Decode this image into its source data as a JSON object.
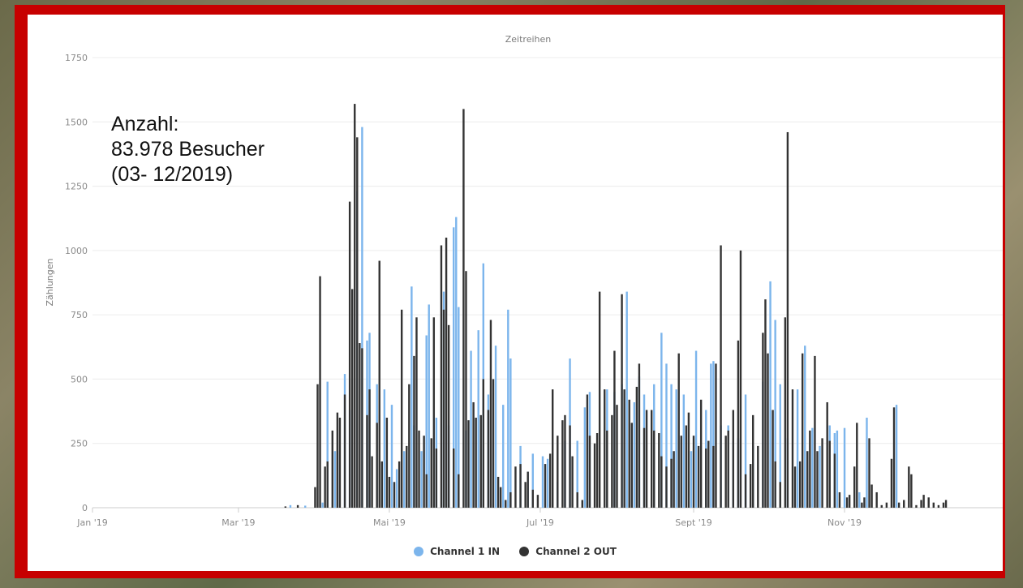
{
  "chart_data": {
    "type": "bar",
    "title": "Zeitreihen",
    "ylabel": "Zählungen",
    "xlabel": "",
    "ylim": [
      0,
      1750
    ],
    "yticks": [
      0,
      250,
      500,
      750,
      1000,
      1250,
      1500,
      1750
    ],
    "xlim": [
      "2019-01-01",
      "2019-12-31"
    ],
    "xticks": [
      {
        "date": "2019-01-01",
        "label": "Jan '19"
      },
      {
        "date": "2019-03-01",
        "label": "Mar '19"
      },
      {
        "date": "2019-05-01",
        "label": "Mai '19"
      },
      {
        "date": "2019-07-01",
        "label": "Jul '19"
      },
      {
        "date": "2019-09-01",
        "label": "Sept '19"
      },
      {
        "date": "2019-11-01",
        "label": "Nov '19"
      }
    ],
    "legend_position": "bottom",
    "grid": true,
    "series": [
      {
        "name": "Channel 1 IN",
        "color": "#7cb5ec",
        "points": [
          [
            "2019-03-22",
            10
          ],
          [
            "2019-03-28",
            8
          ],
          [
            "2019-04-04",
            20
          ],
          [
            "2019-04-06",
            490
          ],
          [
            "2019-04-09",
            220
          ],
          [
            "2019-04-10",
            220
          ],
          [
            "2019-04-13",
            520
          ],
          [
            "2019-04-15",
            380
          ],
          [
            "2019-04-18",
            1230
          ],
          [
            "2019-04-20",
            1480
          ],
          [
            "2019-04-22",
            650
          ],
          [
            "2019-04-23",
            680
          ],
          [
            "2019-04-26",
            480
          ],
          [
            "2019-04-29",
            460
          ],
          [
            "2019-05-02",
            400
          ],
          [
            "2019-05-04",
            150
          ],
          [
            "2019-05-07",
            220
          ],
          [
            "2019-05-10",
            860
          ],
          [
            "2019-05-11",
            320
          ],
          [
            "2019-05-14",
            220
          ],
          [
            "2019-05-16",
            670
          ],
          [
            "2019-05-17",
            790
          ],
          [
            "2019-05-20",
            350
          ],
          [
            "2019-05-23",
            840
          ],
          [
            "2019-05-25",
            320
          ],
          [
            "2019-05-27",
            1090
          ],
          [
            "2019-05-28",
            1130
          ],
          [
            "2019-05-29",
            780
          ],
          [
            "2019-06-01",
            300
          ],
          [
            "2019-06-03",
            610
          ],
          [
            "2019-06-06",
            690
          ],
          [
            "2019-06-08",
            950
          ],
          [
            "2019-06-10",
            440
          ],
          [
            "2019-06-13",
            630
          ],
          [
            "2019-06-16",
            400
          ],
          [
            "2019-06-18",
            770
          ],
          [
            "2019-06-19",
            580
          ],
          [
            "2019-06-23",
            240
          ],
          [
            "2019-06-26",
            140
          ],
          [
            "2019-06-28",
            210
          ],
          [
            "2019-07-02",
            200
          ],
          [
            "2019-07-04",
            190
          ],
          [
            "2019-07-08",
            100
          ],
          [
            "2019-07-11",
            260
          ],
          [
            "2019-07-13",
            580
          ],
          [
            "2019-07-16",
            260
          ],
          [
            "2019-07-19",
            390
          ],
          [
            "2019-07-21",
            450
          ],
          [
            "2019-07-28",
            460
          ],
          [
            "2019-07-31",
            450
          ],
          [
            "2019-08-03",
            480
          ],
          [
            "2019-08-05",
            840
          ],
          [
            "2019-08-08",
            410
          ],
          [
            "2019-08-10",
            510
          ],
          [
            "2019-08-12",
            440
          ],
          [
            "2019-08-16",
            480
          ],
          [
            "2019-08-19",
            680
          ],
          [
            "2019-08-21",
            560
          ],
          [
            "2019-08-23",
            480
          ],
          [
            "2019-08-25",
            460
          ],
          [
            "2019-08-28",
            440
          ],
          [
            "2019-08-31",
            220
          ],
          [
            "2019-09-02",
            610
          ],
          [
            "2019-09-06",
            380
          ],
          [
            "2019-09-08",
            560
          ],
          [
            "2019-09-09",
            570
          ],
          [
            "2019-09-12",
            320
          ],
          [
            "2019-09-15",
            320
          ],
          [
            "2019-09-17",
            260
          ],
          [
            "2019-09-19",
            270
          ],
          [
            "2019-09-22",
            440
          ],
          [
            "2019-09-25",
            240
          ],
          [
            "2019-09-29",
            490
          ],
          [
            "2019-10-02",
            880
          ],
          [
            "2019-10-04",
            730
          ],
          [
            "2019-10-06",
            480
          ],
          [
            "2019-10-09",
            270
          ],
          [
            "2019-10-13",
            460
          ],
          [
            "2019-10-16",
            630
          ],
          [
            "2019-10-19",
            310
          ],
          [
            "2019-10-22",
            240
          ],
          [
            "2019-10-26",
            320
          ],
          [
            "2019-10-28",
            290
          ],
          [
            "2019-10-29",
            300
          ],
          [
            "2019-11-01",
            310
          ],
          [
            "2019-11-07",
            60
          ],
          [
            "2019-11-10",
            350
          ],
          [
            "2019-11-22",
            400
          ]
        ]
      },
      {
        "name": "Channel 2 OUT",
        "color": "#333333",
        "points": [
          [
            "2019-03-20",
            5
          ],
          [
            "2019-03-25",
            10
          ],
          [
            "2019-04-01",
            80
          ],
          [
            "2019-04-02",
            480
          ],
          [
            "2019-04-03",
            900
          ],
          [
            "2019-04-05",
            160
          ],
          [
            "2019-04-06",
            180
          ],
          [
            "2019-04-08",
            300
          ],
          [
            "2019-04-10",
            370
          ],
          [
            "2019-04-11",
            350
          ],
          [
            "2019-04-13",
            440
          ],
          [
            "2019-04-15",
            1190
          ],
          [
            "2019-04-16",
            850
          ],
          [
            "2019-04-17",
            1570
          ],
          [
            "2019-04-18",
            1440
          ],
          [
            "2019-04-19",
            640
          ],
          [
            "2019-04-20",
            620
          ],
          [
            "2019-04-22",
            360
          ],
          [
            "2019-04-23",
            460
          ],
          [
            "2019-04-24",
            200
          ],
          [
            "2019-04-26",
            330
          ],
          [
            "2019-04-27",
            960
          ],
          [
            "2019-04-28",
            180
          ],
          [
            "2019-04-30",
            350
          ],
          [
            "2019-05-01",
            120
          ],
          [
            "2019-05-03",
            100
          ],
          [
            "2019-05-05",
            180
          ],
          [
            "2019-05-06",
            770
          ],
          [
            "2019-05-08",
            240
          ],
          [
            "2019-05-09",
            480
          ],
          [
            "2019-05-11",
            590
          ],
          [
            "2019-05-12",
            740
          ],
          [
            "2019-05-13",
            300
          ],
          [
            "2019-05-15",
            280
          ],
          [
            "2019-05-16",
            130
          ],
          [
            "2019-05-18",
            270
          ],
          [
            "2019-05-19",
            740
          ],
          [
            "2019-05-20",
            230
          ],
          [
            "2019-05-22",
            1020
          ],
          [
            "2019-05-23",
            770
          ],
          [
            "2019-05-24",
            1050
          ],
          [
            "2019-05-25",
            710
          ],
          [
            "2019-05-27",
            230
          ],
          [
            "2019-05-29",
            130
          ],
          [
            "2019-05-31",
            1550
          ],
          [
            "2019-06-01",
            920
          ],
          [
            "2019-06-02",
            340
          ],
          [
            "2019-06-04",
            410
          ],
          [
            "2019-06-05",
            350
          ],
          [
            "2019-06-07",
            360
          ],
          [
            "2019-06-08",
            500
          ],
          [
            "2019-06-10",
            380
          ],
          [
            "2019-06-11",
            730
          ],
          [
            "2019-06-12",
            500
          ],
          [
            "2019-06-14",
            120
          ],
          [
            "2019-06-15",
            80
          ],
          [
            "2019-06-17",
            30
          ],
          [
            "2019-06-19",
            60
          ],
          [
            "2019-06-21",
            160
          ],
          [
            "2019-06-23",
            170
          ],
          [
            "2019-06-25",
            100
          ],
          [
            "2019-06-26",
            140
          ],
          [
            "2019-06-28",
            70
          ],
          [
            "2019-06-30",
            50
          ],
          [
            "2019-07-03",
            170
          ],
          [
            "2019-07-05",
            210
          ],
          [
            "2019-07-06",
            460
          ],
          [
            "2019-07-08",
            280
          ],
          [
            "2019-07-10",
            340
          ],
          [
            "2019-07-11",
            360
          ],
          [
            "2019-07-13",
            320
          ],
          [
            "2019-07-14",
            200
          ],
          [
            "2019-07-16",
            60
          ],
          [
            "2019-07-18",
            30
          ],
          [
            "2019-07-20",
            440
          ],
          [
            "2019-07-21",
            280
          ],
          [
            "2019-07-23",
            250
          ],
          [
            "2019-07-24",
            290
          ],
          [
            "2019-07-25",
            840
          ],
          [
            "2019-07-27",
            460
          ],
          [
            "2019-07-28",
            300
          ],
          [
            "2019-07-30",
            360
          ],
          [
            "2019-07-31",
            610
          ],
          [
            "2019-08-01",
            400
          ],
          [
            "2019-08-03",
            830
          ],
          [
            "2019-08-04",
            460
          ],
          [
            "2019-08-06",
            420
          ],
          [
            "2019-08-07",
            330
          ],
          [
            "2019-08-09",
            470
          ],
          [
            "2019-08-10",
            560
          ],
          [
            "2019-08-12",
            310
          ],
          [
            "2019-08-13",
            380
          ],
          [
            "2019-08-15",
            380
          ],
          [
            "2019-08-16",
            300
          ],
          [
            "2019-08-18",
            290
          ],
          [
            "2019-08-19",
            200
          ],
          [
            "2019-08-21",
            160
          ],
          [
            "2019-08-23",
            190
          ],
          [
            "2019-08-24",
            220
          ],
          [
            "2019-08-26",
            600
          ],
          [
            "2019-08-27",
            280
          ],
          [
            "2019-08-29",
            320
          ],
          [
            "2019-08-30",
            370
          ],
          [
            "2019-09-01",
            280
          ],
          [
            "2019-09-03",
            240
          ],
          [
            "2019-09-04",
            420
          ],
          [
            "2019-09-06",
            230
          ],
          [
            "2019-09-07",
            260
          ],
          [
            "2019-09-09",
            240
          ],
          [
            "2019-09-10",
            560
          ],
          [
            "2019-09-12",
            1020
          ],
          [
            "2019-09-14",
            280
          ],
          [
            "2019-09-15",
            300
          ],
          [
            "2019-09-17",
            380
          ],
          [
            "2019-09-19",
            650
          ],
          [
            "2019-09-20",
            1000
          ],
          [
            "2019-09-22",
            130
          ],
          [
            "2019-09-24",
            170
          ],
          [
            "2019-09-25",
            360
          ],
          [
            "2019-09-27",
            240
          ],
          [
            "2019-09-29",
            680
          ],
          [
            "2019-09-30",
            810
          ],
          [
            "2019-10-01",
            600
          ],
          [
            "2019-10-03",
            380
          ],
          [
            "2019-10-04",
            180
          ],
          [
            "2019-10-06",
            100
          ],
          [
            "2019-10-08",
            740
          ],
          [
            "2019-10-09",
            1460
          ],
          [
            "2019-10-11",
            460
          ],
          [
            "2019-10-12",
            160
          ],
          [
            "2019-10-14",
            180
          ],
          [
            "2019-10-15",
            600
          ],
          [
            "2019-10-17",
            220
          ],
          [
            "2019-10-18",
            300
          ],
          [
            "2019-10-20",
            590
          ],
          [
            "2019-10-21",
            220
          ],
          [
            "2019-10-23",
            270
          ],
          [
            "2019-10-25",
            410
          ],
          [
            "2019-10-26",
            260
          ],
          [
            "2019-10-28",
            210
          ],
          [
            "2019-10-30",
            60
          ],
          [
            "2019-11-02",
            40
          ],
          [
            "2019-11-03",
            50
          ],
          [
            "2019-11-05",
            160
          ],
          [
            "2019-11-06",
            330
          ],
          [
            "2019-11-08",
            20
          ],
          [
            "2019-11-09",
            40
          ],
          [
            "2019-11-11",
            270
          ],
          [
            "2019-11-12",
            90
          ],
          [
            "2019-11-14",
            60
          ],
          [
            "2019-11-16",
            10
          ],
          [
            "2019-11-18",
            20
          ],
          [
            "2019-11-20",
            190
          ],
          [
            "2019-11-21",
            390
          ],
          [
            "2019-11-23",
            20
          ],
          [
            "2019-11-25",
            30
          ],
          [
            "2019-11-27",
            160
          ],
          [
            "2019-11-28",
            130
          ],
          [
            "2019-11-30",
            10
          ],
          [
            "2019-12-02",
            30
          ],
          [
            "2019-12-03",
            50
          ],
          [
            "2019-12-05",
            40
          ],
          [
            "2019-12-07",
            20
          ],
          [
            "2019-12-09",
            10
          ],
          [
            "2019-12-11",
            20
          ],
          [
            "2019-12-12",
            30
          ]
        ]
      }
    ]
  },
  "annotation": {
    "line1": "Anzahl:",
    "line2": "83.978 Besucher",
    "line3": "(03- 12/2019)"
  }
}
